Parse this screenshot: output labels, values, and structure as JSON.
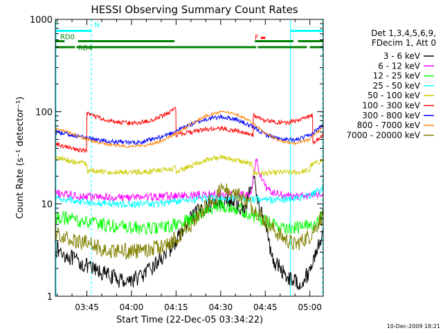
{
  "chart_data": {
    "type": "line",
    "title": "HESSI Observing Summary Count Rates",
    "xlabel": "Start Time (22-Dec-05 03:34:22)",
    "ylabel": "Count Rate (s⁻¹ detector⁻¹)",
    "ylim": [
      1,
      1000
    ],
    "yscale": "log",
    "xlim_minutes": [
      214.4,
      304.5
    ],
    "x_unit": "minutes after 00:00 UT, 22-Dec-05",
    "x_ticks": [
      {
        "t": 225,
        "label": "03:45"
      },
      {
        "t": 240,
        "label": "04:00"
      },
      {
        "t": 255,
        "label": "04:15"
      },
      {
        "t": 270,
        "label": "04:30"
      },
      {
        "t": 285,
        "label": "04:45"
      },
      {
        "t": 300,
        "label": "05:00"
      }
    ],
    "y_ticks": [
      {
        "v": 1,
        "label": "1"
      },
      {
        "v": 10,
        "label": "10"
      },
      {
        "v": 100,
        "label": "100"
      },
      {
        "v": 1000,
        "label": "1000"
      }
    ],
    "legend_header": [
      "Det 1,3,4,5,6,9,",
      "FDecim 1, Att 0"
    ],
    "legend_position": "right",
    "series": [
      {
        "name": "3 - 6 keV",
        "color": "#000000",
        "t": [
          214.5,
          216,
          219,
          221.5,
          224,
          226,
          228,
          230,
          232,
          234,
          236,
          238,
          240,
          242,
          244,
          246,
          248,
          250,
          252,
          254,
          256,
          258,
          260,
          262,
          264,
          266,
          268,
          270,
          272,
          274,
          276,
          278,
          280,
          281,
          282,
          283,
          284,
          285,
          286,
          287,
          288,
          290,
          292,
          294,
          296,
          298,
          300,
          302,
          304.4
        ],
        "v": [
          3.3,
          3.0,
          2.7,
          2.4,
          2.2,
          2.0,
          1.9,
          1.8,
          1.7,
          1.6,
          1.5,
          1.5,
          1.5,
          1.6,
          1.7,
          1.9,
          2.2,
          2.6,
          3.0,
          3.6,
          4.5,
          5.5,
          6.8,
          8.0,
          9.0,
          9.8,
          10.4,
          10.8,
          10.7,
          10.2,
          9.4,
          8.6,
          14.0,
          19.0,
          14.0,
          9.0,
          7.5,
          6.0,
          4.0,
          3.0,
          2.4,
          2.0,
          1.7,
          1.5,
          1.4,
          1.5,
          1.9,
          3.0,
          5.0
        ]
      },
      {
        "name": "6 - 12 keV",
        "color": "#ff00ff",
        "t": [
          214.5,
          220,
          225,
          230,
          235,
          240,
          245,
          250,
          255,
          260,
          265,
          270,
          275,
          280,
          281,
          282,
          283,
          284,
          285,
          286,
          288,
          290,
          295,
          300,
          304.4
        ],
        "v": [
          13.0,
          12.5,
          12.0,
          11.8,
          11.8,
          11.8,
          11.9,
          12.0,
          12.2,
          12.5,
          12.6,
          12.7,
          12.6,
          12.5,
          20.0,
          30.0,
          22.0,
          18.0,
          16.0,
          14.0,
          13.0,
          12.6,
          12.0,
          12.4,
          13.0
        ]
      },
      {
        "name": "12 - 25 keV",
        "color": "#00ff00",
        "t": [
          214.5,
          220,
          225,
          230,
          235,
          240,
          245,
          250,
          255,
          260,
          264,
          268,
          270,
          272,
          276,
          280,
          284,
          288,
          292,
          296,
          300,
          302,
          304.4
        ],
        "v": [
          7.2,
          6.8,
          6.3,
          6.0,
          5.7,
          5.5,
          5.4,
          5.5,
          5.9,
          6.8,
          8.0,
          9.3,
          9.7,
          9.6,
          8.8,
          7.7,
          6.6,
          5.9,
          5.6,
          5.5,
          5.8,
          6.5,
          7.8
        ]
      },
      {
        "name": "25 - 50 keV",
        "color": "#00ffff",
        "t": [
          214.5,
          220,
          225,
          230,
          235,
          240,
          245,
          250,
          255,
          260,
          265,
          270,
          275,
          280,
          285,
          290,
          295,
          300,
          304.4
        ],
        "v": [
          11.5,
          11.0,
          10.5,
          10.2,
          10.0,
          9.9,
          10.0,
          10.2,
          10.6,
          11.0,
          11.5,
          11.7,
          11.6,
          11.4,
          11.2,
          11.2,
          11.3,
          12.2,
          14.5
        ]
      },
      {
        "name": "50 - 100 keV",
        "color": "#cccc00",
        "t": [
          214.5,
          218,
          222,
          225,
          225.1,
          230,
          235,
          240,
          245,
          250,
          255,
          255.1,
          260,
          265,
          270,
          275,
          280,
          281,
          281.1,
          285,
          290,
          295,
          300,
          300.1,
          304.4
        ],
        "v": [
          32,
          30,
          28,
          27,
          23,
          22.5,
          22,
          22,
          22.5,
          23,
          24.5,
          22,
          26,
          30,
          32,
          30,
          27,
          26,
          21.5,
          21.5,
          22,
          22,
          23,
          26,
          30
        ]
      },
      {
        "name": "100 - 300 keV",
        "color": "#ff0000",
        "t": [
          214.5,
          217,
          220,
          222,
          224.9,
          225,
          230,
          235,
          240,
          245,
          250,
          253,
          254.9,
          255,
          260,
          265,
          270,
          275,
          280.9,
          281,
          284,
          288,
          292,
          296,
          300.9,
          301,
          303,
          304.4
        ],
        "v": [
          45,
          42,
          40,
          38.5,
          37.5,
          95,
          84,
          77,
          75,
          78,
          89,
          100,
          108,
          56,
          60,
          64,
          66,
          62,
          56,
          92,
          82,
          77,
          76,
          80,
          92,
          45,
          50,
          58
        ]
      },
      {
        "name": "300 - 800 keV",
        "color": "#0000ff",
        "t": [
          214.5,
          220,
          225,
          230,
          235,
          240,
          245,
          250,
          255,
          260,
          265,
          270,
          275,
          280,
          285,
          290,
          295,
          300,
          304.4
        ],
        "v": [
          60,
          56,
          52,
          49,
          47,
          46,
          48,
          53,
          62,
          73,
          83,
          88,
          83,
          70,
          57,
          50,
          49,
          55,
          72
        ]
      },
      {
        "name": "800 - 7000 keV",
        "color": "#ff8000",
        "t": [
          214.5,
          220,
          225,
          230,
          235,
          240,
          245,
          250,
          255,
          260,
          265,
          270,
          275,
          280,
          285,
          290,
          295,
          300,
          304.4
        ],
        "v": [
          66,
          58,
          50,
          45,
          43,
          42,
          43,
          48,
          58,
          73,
          90,
          100,
          95,
          78,
          58,
          48,
          45,
          50,
          68
        ]
      },
      {
        "name": "7000 - 20000 keV",
        "color": "#808000",
        "t": [
          214.5,
          220,
          225,
          230,
          235,
          240,
          245,
          250,
          255,
          260,
          265,
          270,
          275,
          280,
          285,
          290,
          295,
          300,
          304.4
        ],
        "v": [
          5.0,
          4.2,
          3.7,
          3.3,
          3.1,
          3.0,
          3.1,
          3.4,
          4.2,
          6.0,
          9.5,
          14.0,
          13.5,
          10.0,
          6.5,
          4.5,
          3.6,
          4.5,
          7.5
        ]
      }
    ],
    "flag_bars": [
      {
        "label": "N",
        "color": "#00ffff",
        "y": 750,
        "segments": [
          [
            214.4,
            226.5
          ],
          [
            293.5,
            304.5
          ]
        ]
      },
      {
        "label": "F",
        "color": "#ff0000",
        "y": 630,
        "segments": [
          [
            283.5,
            285.0
          ]
        ]
      },
      {
        "label": "RD0",
        "color": "#008000",
        "y": 580,
        "segments": [
          [
            214.4,
            217.5
          ],
          [
            222.0,
            254.5
          ],
          [
            281.5,
            294.5
          ],
          [
            296.0,
            304.5
          ]
        ]
      },
      {
        "label": "RD4",
        "color": "#008000",
        "y": 500,
        "segments": [
          [
            214.4,
            221.0
          ],
          [
            221.5,
            282.0
          ],
          [
            282.5,
            299.0
          ],
          [
            300.0,
            304.5
          ]
        ]
      }
    ],
    "cyan_vlines": [
      {
        "t": 214.6,
        "style": "solid"
      },
      {
        "t": 226.5,
        "style": "dashed"
      },
      {
        "t": 293.5,
        "style": "solid"
      },
      {
        "t": 304.2,
        "style": "dashed"
      }
    ],
    "legend_words": {
      "F": "F",
      "N": "N",
      "RD0": "RD0",
      "RD4": "RD4"
    }
  },
  "footer": {
    "date_stamp": "10-Dec-2009 18:21"
  }
}
